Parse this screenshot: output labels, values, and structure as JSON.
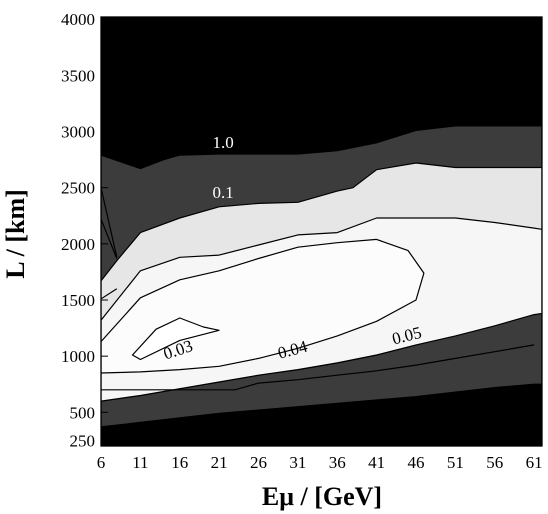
{
  "chart_data": {
    "type": "contour",
    "xlabel": "Eμ / [GeV]",
    "ylabel": "L / [km]",
    "xlim": [
      6,
      62
    ],
    "ylim": [
      200,
      4020
    ],
    "x_ticks": [
      6,
      11,
      16,
      21,
      26,
      31,
      36,
      41,
      46,
      51,
      56,
      61
    ],
    "y_ticks": [
      250,
      500,
      1000,
      1500,
      2000,
      2500,
      3000,
      3500,
      4000
    ],
    "grid": false,
    "levels": [
      {
        "label": "",
        "fill": "#3c3c3c",
        "boundary": [
          [
            6,
            2840
          ],
          [
            6,
            2790
          ],
          [
            11,
            2670
          ],
          [
            14,
            2750
          ],
          [
            16,
            2790
          ],
          [
            21,
            2800
          ],
          [
            26,
            2800
          ],
          [
            31,
            2800
          ],
          [
            36,
            2830
          ],
          [
            41,
            2900
          ],
          [
            46,
            3010
          ],
          [
            51,
            3050
          ],
          [
            56,
            3050
          ],
          [
            61,
            3050
          ],
          [
            62,
            3050
          ],
          [
            62,
            750
          ],
          [
            61,
            750
          ],
          [
            56,
            720
          ],
          [
            51,
            680
          ],
          [
            46,
            640
          ],
          [
            41,
            610
          ],
          [
            36,
            580
          ],
          [
            31,
            550
          ],
          [
            26,
            520
          ],
          [
            21,
            490
          ],
          [
            16,
            450
          ],
          [
            11,
            410
          ],
          [
            6,
            370
          ],
          [
            6,
            310
          ]
        ]
      },
      {
        "label": "",
        "fill": "#e6e6e6",
        "boundary": [
          [
            6,
            1670
          ],
          [
            8,
            1850
          ],
          [
            11,
            2100
          ],
          [
            16,
            2230
          ],
          [
            21,
            2330
          ],
          [
            26,
            2360
          ],
          [
            31,
            2370
          ],
          [
            36,
            2470
          ],
          [
            38,
            2500
          ],
          [
            41,
            2660
          ],
          [
            46,
            2720
          ],
          [
            51,
            2680
          ],
          [
            56,
            2680
          ],
          [
            61,
            2680
          ],
          [
            62,
            2680
          ],
          [
            62,
            1500
          ],
          [
            61,
            1380
          ],
          [
            56,
            1280
          ],
          [
            51,
            1190
          ],
          [
            46,
            1100
          ],
          [
            41,
            1010
          ],
          [
            36,
            940
          ],
          [
            31,
            880
          ],
          [
            26,
            830
          ],
          [
            21,
            770
          ],
          [
            16,
            710
          ],
          [
            11,
            650
          ],
          [
            6,
            600
          ]
        ]
      },
      {
        "label": "",
        "fill": "#f6f6f6",
        "boundary": [
          [
            6,
            1320
          ],
          [
            11,
            1760
          ],
          [
            16,
            1880
          ],
          [
            21,
            1900
          ],
          [
            26,
            1990
          ],
          [
            31,
            2080
          ],
          [
            36,
            2100
          ],
          [
            41,
            2230
          ],
          [
            46,
            2230
          ],
          [
            51,
            2230
          ],
          [
            56,
            2190
          ],
          [
            61,
            2140
          ],
          [
            62,
            2130
          ],
          [
            62,
            1380
          ],
          [
            61,
            1370
          ],
          [
            56,
            1270
          ],
          [
            51,
            1180
          ],
          [
            46,
            1100
          ],
          [
            41,
            1010
          ],
          [
            36,
            940
          ],
          [
            31,
            880
          ],
          [
            26,
            830
          ],
          [
            21,
            770
          ],
          [
            16,
            710
          ],
          [
            11,
            650
          ],
          [
            6,
            600
          ]
        ]
      },
      {
        "label": "",
        "fill": "#fcfcfc",
        "boundary": [
          [
            6,
            1130
          ],
          [
            11,
            1520
          ],
          [
            16,
            1680
          ],
          [
            21,
            1760
          ],
          [
            26,
            1870
          ],
          [
            31,
            1970
          ],
          [
            36,
            2010
          ],
          [
            41,
            2040
          ],
          [
            45,
            1940
          ],
          [
            47,
            1740
          ],
          [
            46,
            1500
          ],
          [
            41,
            1310
          ],
          [
            36,
            1180
          ],
          [
            31,
            1070
          ],
          [
            26,
            980
          ],
          [
            21,
            910
          ],
          [
            16,
            880
          ],
          [
            11,
            860
          ],
          [
            6,
            850
          ]
        ]
      },
      {
        "label": "",
        "fill": "#ffffff",
        "boundary": [
          [
            10,
            1010
          ],
          [
            13,
            1240
          ],
          [
            16,
            1340
          ],
          [
            19,
            1260
          ],
          [
            21,
            1230
          ],
          [
            16,
            1140
          ],
          [
            11,
            970
          ]
        ]
      }
    ],
    "extra_lines": [
      {
        "points": [
          [
            6,
            2500
          ],
          [
            8,
            1880
          ]
        ]
      },
      {
        "points": [
          [
            6,
            2220
          ],
          [
            8,
            1870
          ]
        ]
      },
      {
        "points": [
          [
            6,
            1510
          ],
          [
            8,
            1600
          ]
        ]
      },
      {
        "points": [
          [
            6,
            700
          ],
          [
            11,
            700
          ],
          [
            16,
            700
          ],
          [
            21,
            700
          ],
          [
            23,
            700
          ],
          [
            26,
            760
          ],
          [
            31,
            790
          ],
          [
            36,
            830
          ],
          [
            41,
            870
          ],
          [
            46,
            920
          ],
          [
            51,
            980
          ],
          [
            56,
            1040
          ],
          [
            61,
            1100
          ]
        ]
      }
    ],
    "contour_labels": [
      {
        "text": "1.0",
        "x": 21.5,
        "y": 2855,
        "rotate": 0,
        "color": "#ffffff"
      },
      {
        "text": "0.1",
        "x": 21.5,
        "y": 2410,
        "rotate": 0,
        "color": "#ffffff"
      },
      {
        "text": "0.03",
        "x": 16.0,
        "y": 1010,
        "rotate": -18,
        "color": "#000000"
      },
      {
        "text": "0.04",
        "x": 30.5,
        "y": 1010,
        "rotate": -15,
        "color": "#000000"
      },
      {
        "text": "0.05",
        "x": 45.0,
        "y": 1135,
        "rotate": -14,
        "color": "#000000"
      }
    ]
  }
}
